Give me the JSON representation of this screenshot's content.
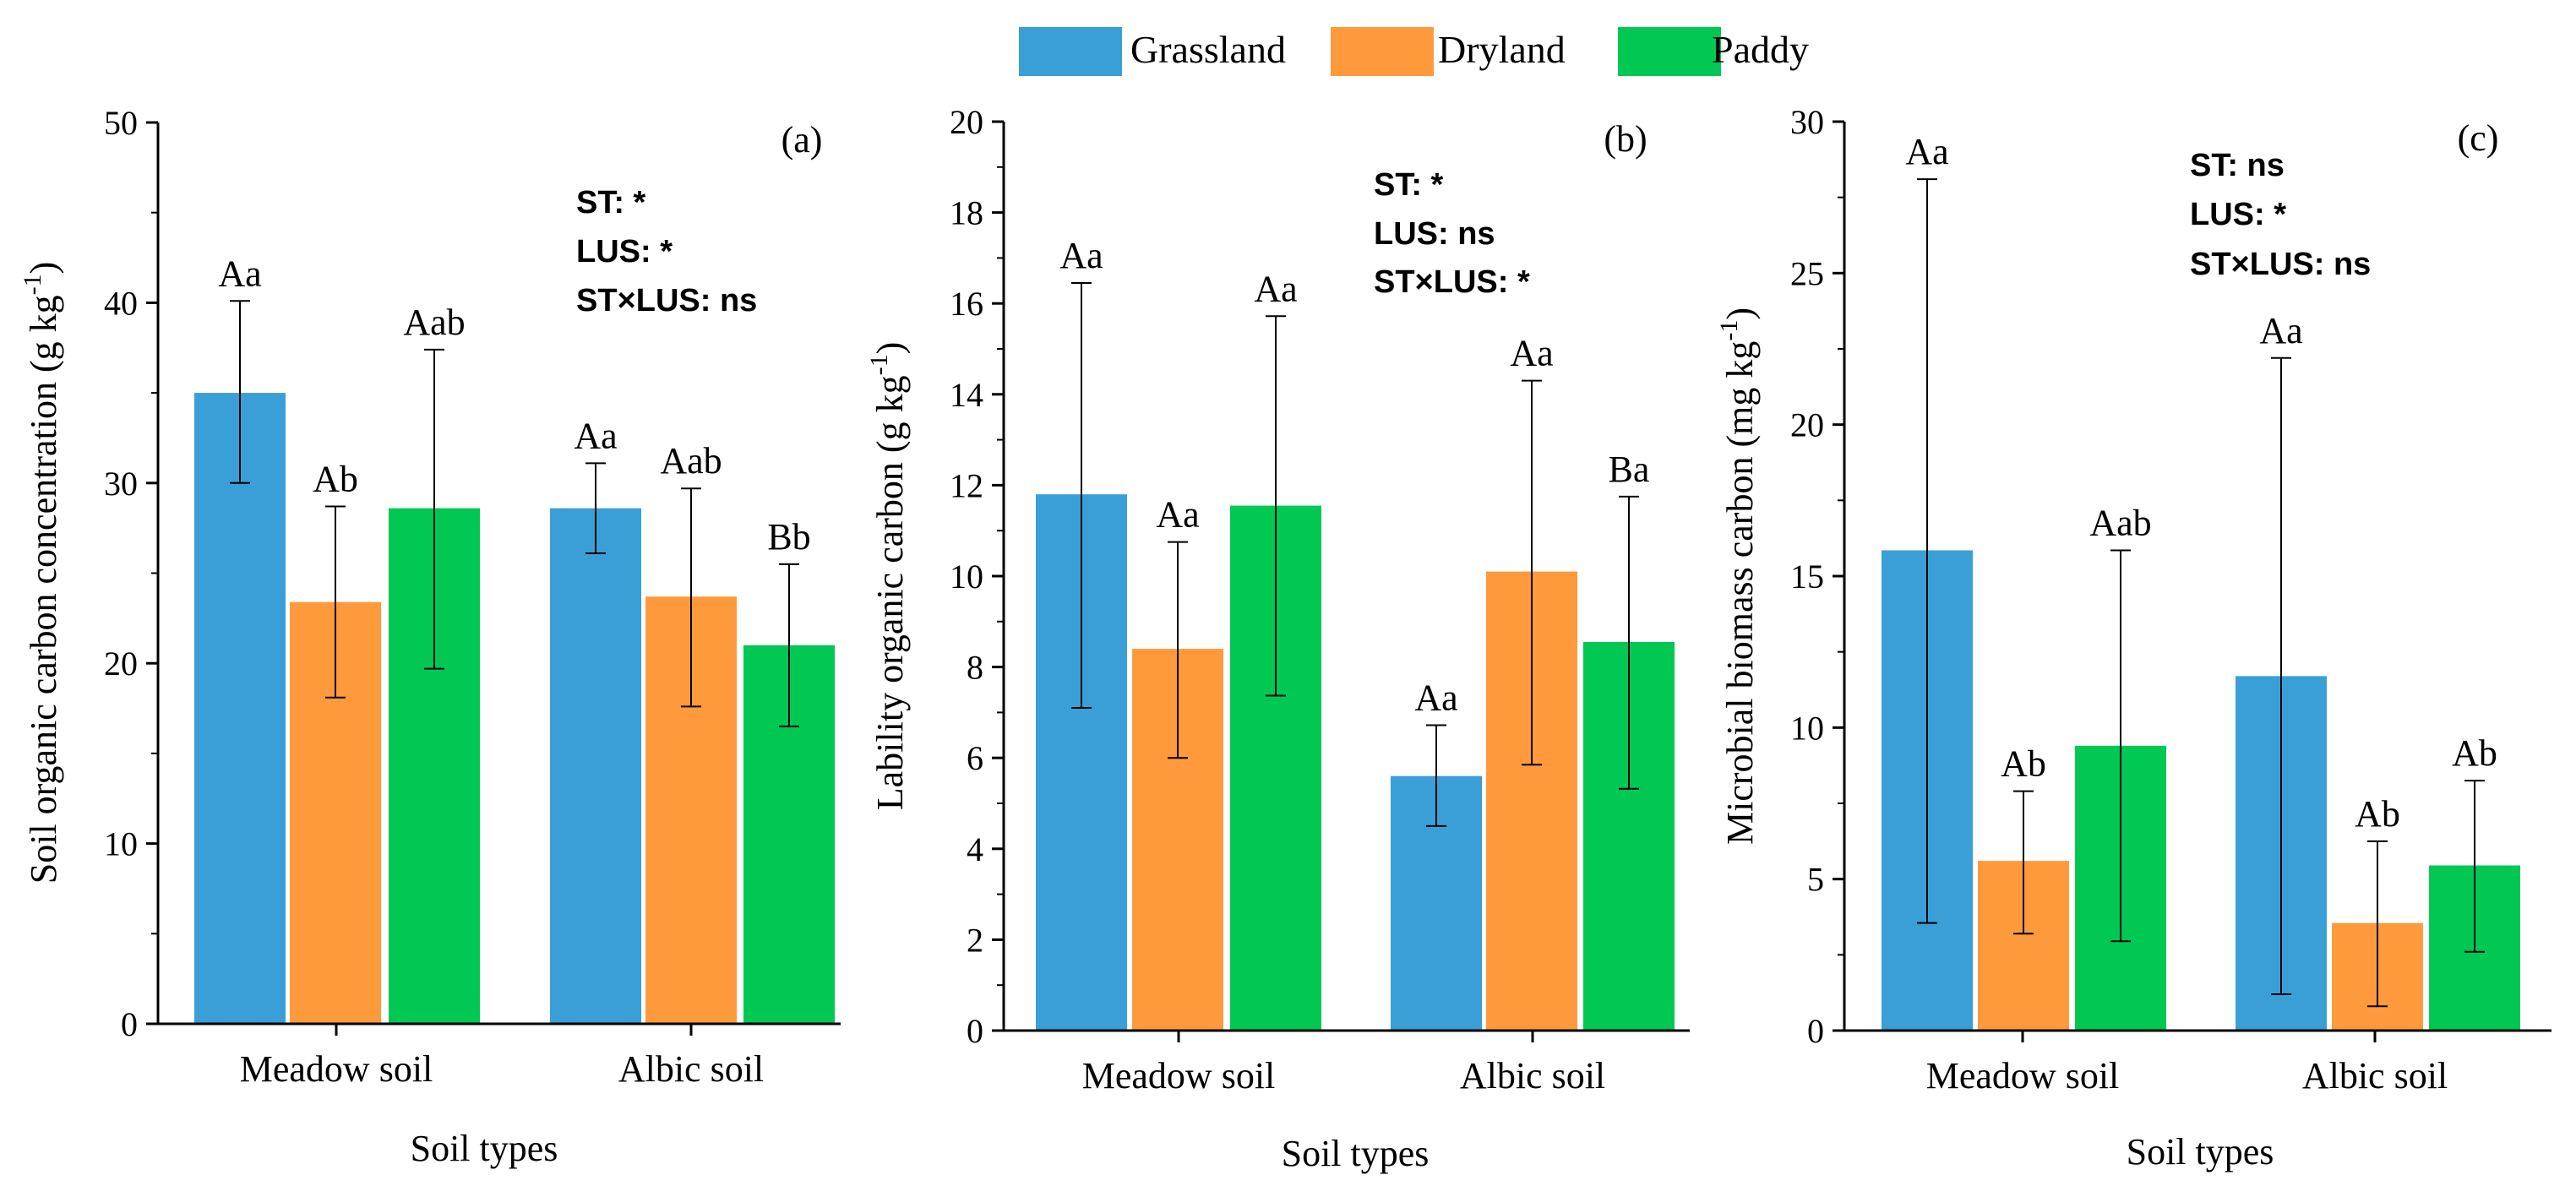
{
  "legend": [
    {
      "name": "Grassland",
      "color": "#3A9FD6"
    },
    {
      "name": "Dryland",
      "color": "#FF9A3C"
    },
    {
      "name": "Paddy",
      "color": "#00C853"
    }
  ],
  "chart_data": [
    {
      "type": "bar",
      "panel_label": "(a)",
      "categories": [
        "Meadow soil",
        "Albic soil"
      ],
      "xlabel": "Soil types",
      "ylabel": "Soil organic carbon concentration (g kg",
      "ylabel_sup": "-1",
      "ylabel_tail": ")",
      "ylim": [
        0,
        50
      ],
      "yticks": [
        "0",
        "10",
        "20",
        "30",
        "40",
        "50"
      ],
      "stats": [
        "ST: *",
        "LUS: *",
        "ST×LUS: ns"
      ],
      "series": [
        {
          "name": "Grassland",
          "values": [
            35.0,
            28.6
          ],
          "err_low": [
            30.0,
            26.1
          ],
          "err_high": [
            40.1,
            31.1
          ],
          "labels": [
            "Aa",
            "Aa"
          ]
        },
        {
          "name": "Dryland",
          "values": [
            23.4,
            23.7
          ],
          "err_low": [
            18.1,
            17.6
          ],
          "err_high": [
            28.7,
            29.7
          ],
          "labels": [
            "Ab",
            "Aab"
          ]
        },
        {
          "name": "Paddy",
          "values": [
            28.6,
            21.0
          ],
          "err_low": [
            19.7,
            16.5
          ],
          "err_high": [
            37.4,
            25.5
          ],
          "labels": [
            "Aab",
            "Bb"
          ]
        }
      ]
    },
    {
      "type": "bar",
      "panel_label": "(b)",
      "categories": [
        "Meadow soil",
        "Albic soil"
      ],
      "xlabel": "Soil types",
      "ylabel": "Lability organic carbon (g kg",
      "ylabel_sup": "-1",
      "ylabel_tail": ")",
      "ylim": [
        0,
        20
      ],
      "yticks": [
        "0",
        "2",
        "4",
        "6",
        "8",
        "10",
        "12",
        "14",
        "16",
        "18",
        "20"
      ],
      "stats": [
        "ST: *",
        "LUS: ns",
        "ST×LUS: *"
      ],
      "series": [
        {
          "name": "Grassland",
          "values": [
            11.8,
            5.6
          ],
          "err_low": [
            7.1,
            4.5
          ],
          "err_high": [
            16.45,
            6.72
          ],
          "labels": [
            "Aa",
            "Aa"
          ]
        },
        {
          "name": "Dryland",
          "values": [
            8.4,
            10.1
          ],
          "err_low": [
            6.0,
            5.85
          ],
          "err_high": [
            10.75,
            14.3
          ],
          "labels": [
            "Aa",
            "Aa"
          ]
        },
        {
          "name": "Paddy",
          "values": [
            11.55,
            8.55
          ],
          "err_low": [
            7.37,
            5.32
          ],
          "err_high": [
            15.72,
            11.75
          ],
          "labels": [
            "Aa",
            "Ba"
          ]
        }
      ]
    },
    {
      "type": "bar",
      "panel_label": "(c)",
      "categories": [
        "Meadow soil",
        "Albic soil"
      ],
      "xlabel": "Soil types",
      "ylabel": "Microbial biomass carbon (mg kg",
      "ylabel_sup": "-1",
      "ylabel_tail": ")",
      "ylim": [
        0,
        30
      ],
      "yticks": [
        "0",
        "5",
        "10",
        "15",
        "20",
        "25",
        "30"
      ],
      "stats": [
        "ST: ns",
        "LUS: *",
        "ST×LUS: ns"
      ],
      "series": [
        {
          "name": "Grassland",
          "values": [
            15.85,
            11.7
          ],
          "err_low": [
            3.55,
            1.2
          ],
          "err_high": [
            28.1,
            22.2
          ],
          "labels": [
            "Aa",
            "Aa"
          ]
        },
        {
          "name": "Dryland",
          "values": [
            5.6,
            3.55
          ],
          "err_low": [
            3.2,
            0.8
          ],
          "err_high": [
            7.9,
            6.25
          ],
          "labels": [
            "Ab",
            "Ab"
          ]
        },
        {
          "name": "Paddy",
          "values": [
            9.4,
            5.45
          ],
          "err_low": [
            2.95,
            2.6
          ],
          "err_high": [
            15.85,
            8.25
          ],
          "labels": [
            "Aab",
            "Ab"
          ]
        }
      ]
    }
  ]
}
